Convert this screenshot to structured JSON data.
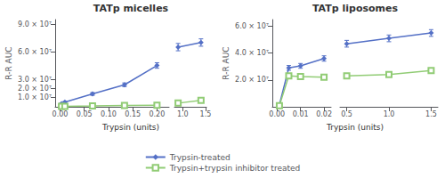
{
  "chart_data": [
    {
      "type": "line",
      "title": "TATp micelles",
      "xlabel": "Trypsin (units)",
      "ylabel": "R-R AUC",
      "x": [
        0.003,
        0.01,
        0.067,
        0.133,
        0.2
      ],
      "series": [
        {
          "name": "Trypsin-treated",
          "marker": "diamond",
          "values": [
            3500000,
            5000000,
            14000000,
            24000000,
            45000000
          ],
          "errors": [
            600000,
            800000,
            1500000,
            2000000,
            3000000
          ]
        },
        {
          "name": "Trypsin+trypsin inhibitor treated",
          "marker": "open_square",
          "values": [
            400000,
            600000,
            900000,
            1400000,
            1800000
          ],
          "errors": [
            100000,
            150000,
            200000,
            300000,
            400000
          ]
        }
      ],
      "xlim": [
        -0.01,
        0.225
      ],
      "xticks": [
        {
          "value": 0,
          "label": "0.00"
        },
        0.05,
        {
          "value": 0.1,
          "label": "0.10"
        },
        0.15,
        {
          "value": 0.2,
          "label": "0.20"
        }
      ],
      "ylim": [
        0,
        95000000
      ],
      "yticks": [
        {
          "value": 10000000,
          "label": "1.0 × 10⁷"
        },
        {
          "value": 20000000,
          "label": "2.0 × 10⁷"
        },
        {
          "value": 30000000,
          "label": "3.0 × 10⁷"
        },
        {
          "value": 60000000,
          "label": "6.0 × 10⁷"
        },
        {
          "value": 90000000,
          "label": "9.0 × 10⁷"
        }
      ],
      "grid": false,
      "legend": "bottom"
    },
    {
      "type": "line",
      "x": [
        0.9,
        1.4
      ],
      "series": [
        {
          "name": "Trypsin-treated",
          "marker": "diamond",
          "values": [
            65000000,
            70000000
          ],
          "errors": [
            4000000,
            4000000
          ]
        },
        {
          "name": "Trypsin+trypsin inhibitor treated",
          "marker": "open_square",
          "values": [
            4000000,
            7000000
          ],
          "errors": [
            600000,
            900000
          ]
        }
      ],
      "xlim": [
        0.82,
        1.52
      ],
      "xticks": [
        {
          "value": 1.0,
          "label": "1.0"
        },
        1.5
      ],
      "ylim": [
        0,
        95000000
      ],
      "grid": false,
      "tick_labels": "x"
    },
    {
      "type": "line",
      "title": "TATp liposomes",
      "xlabel": "Trypsin (units)",
      "ylabel": "R-R AUC",
      "x": [
        0.001,
        0.005,
        0.01,
        0.02
      ],
      "series": [
        {
          "name": "Trypsin-treated",
          "marker": "diamond",
          "values": [
            1500000,
            29000000,
            30500000,
            36000000
          ],
          "errors": [
            300000,
            1800000,
            1800000,
            2000000
          ]
        },
        {
          "name": "Trypsin+trypsin inhibitor treated",
          "marker": "open_square",
          "values": [
            800000,
            23000000,
            22500000,
            22000000
          ],
          "errors": [
            200000,
            1400000,
            1400000,
            1200000
          ]
        }
      ],
      "xlim": [
        -0.002,
        0.023
      ],
      "xticks": [
        {
          "value": 0,
          "label": "0.00"
        },
        0.01,
        0.02
      ],
      "ylim": [
        0,
        65000000
      ],
      "yticks": [
        {
          "value": 20000000,
          "label": "2.0 × 10⁷"
        },
        {
          "value": 40000000,
          "label": "4.0 × 10⁷"
        },
        {
          "value": 60000000,
          "label": "6.0 × 10⁷"
        }
      ],
      "grid": false
    },
    {
      "type": "line",
      "x": [
        0.5,
        1.0,
        1.5
      ],
      "series": [
        {
          "name": "Trypsin-treated",
          "marker": "diamond",
          "values": [
            47000000,
            51000000,
            55000000
          ],
          "errors": [
            2500000,
            2500000,
            2500000
          ]
        },
        {
          "name": "Trypsin+trypsin inhibitor treated",
          "marker": "open_square",
          "values": [
            23000000,
            24000000,
            27000000
          ],
          "errors": [
            1200000,
            1200000,
            1500000
          ]
        }
      ],
      "xlim": [
        0.42,
        1.58
      ],
      "xticks": [
        0.5,
        {
          "value": 1.0,
          "label": "1.0"
        },
        1.5
      ],
      "ylim": [
        0,
        65000000
      ],
      "grid": false,
      "tick_labels": "x"
    }
  ]
}
